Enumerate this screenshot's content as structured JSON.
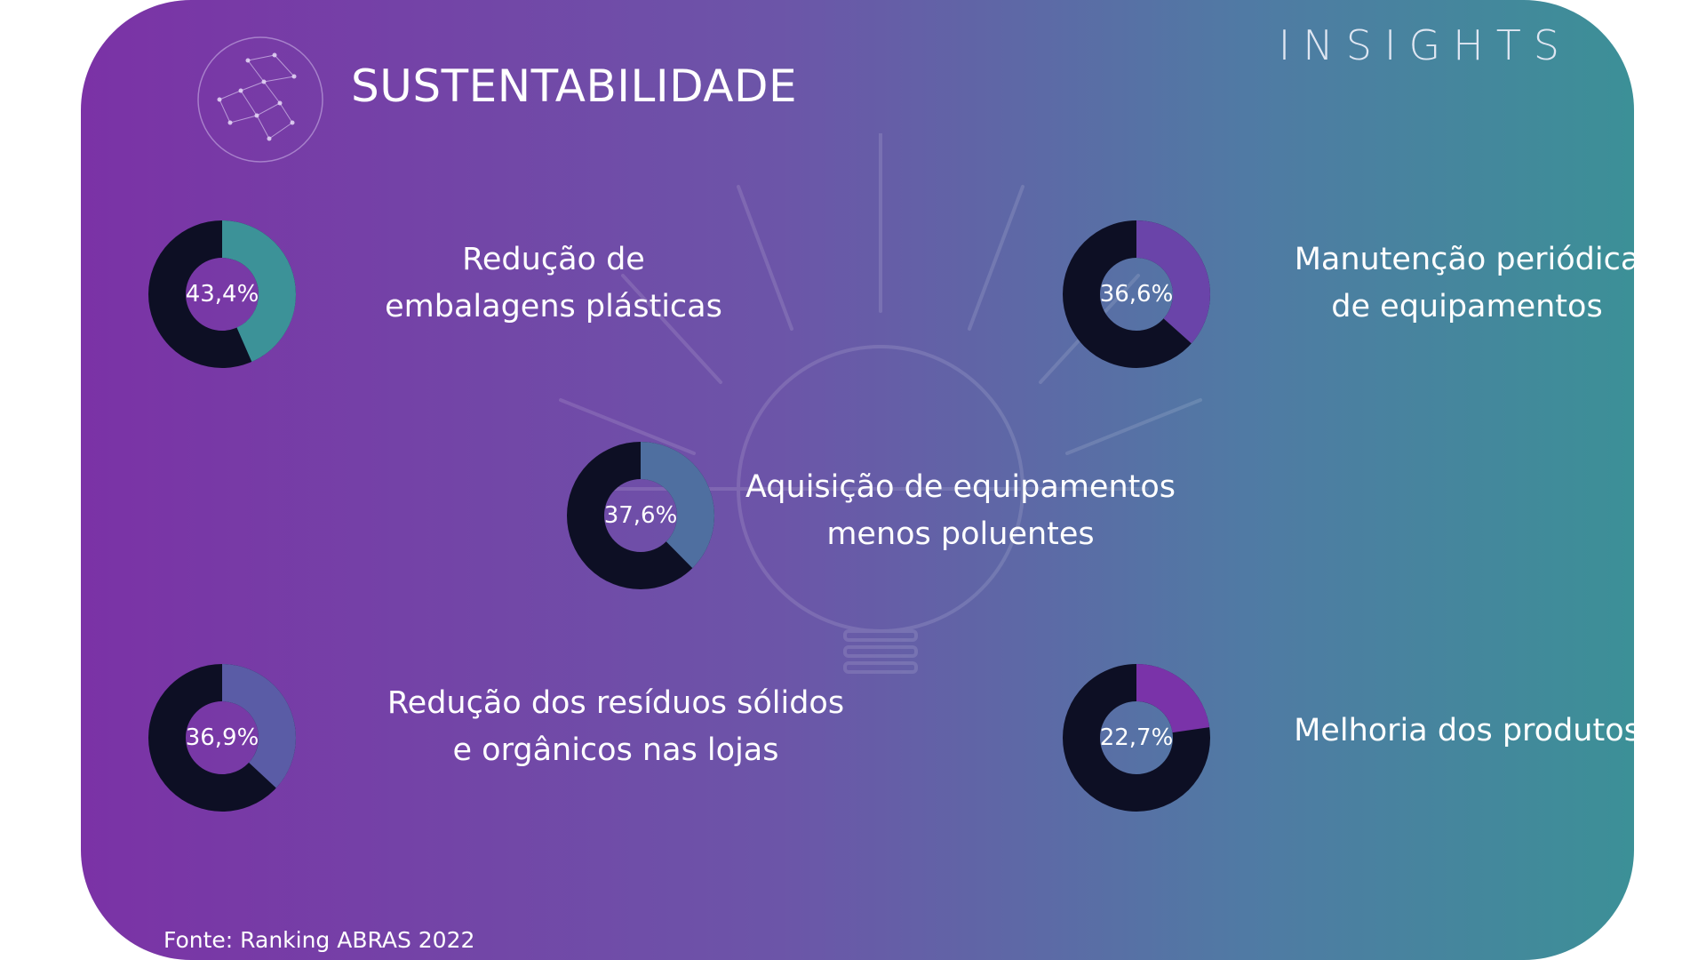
{
  "header": {
    "title": "SUSTENTABILIDADE",
    "brand": "INSIGHTS"
  },
  "footer": {
    "source": "Fonte: Ranking ABRAS 2022"
  },
  "colors": {
    "track": "#0d0f24",
    "teal": "#3c9298",
    "purple": "#6a44a9",
    "steel": "#4f6fa0",
    "slate": "#5a5ca6",
    "violet": "#7a33a9"
  },
  "chart_data": {
    "type": "pie",
    "variant": "donut",
    "items": [
      {
        "label_lines": [
          "Redução de",
          "embalagens plásticas"
        ],
        "value": 43.4,
        "display": "43,4%",
        "color": "#3c9298"
      },
      {
        "label_lines": [
          "Manutenção periódica",
          "de equipamentos"
        ],
        "value": 36.6,
        "display": "36,6%",
        "color": "#6a44a9"
      },
      {
        "label_lines": [
          "Aquisição de equipamentos",
          "menos poluentes"
        ],
        "value": 37.6,
        "display": "37,6%",
        "color": "#4f6fa0"
      },
      {
        "label_lines": [
          "Redução dos resíduos sólidos",
          "e orgânicos nas lojas"
        ],
        "value": 36.9,
        "display": "36,9%",
        "color": "#5a5ca6"
      },
      {
        "label_lines": [
          "Melhoria dos produtos"
        ],
        "value": 22.7,
        "display": "22,7%",
        "color": "#7a33a9"
      }
    ]
  }
}
